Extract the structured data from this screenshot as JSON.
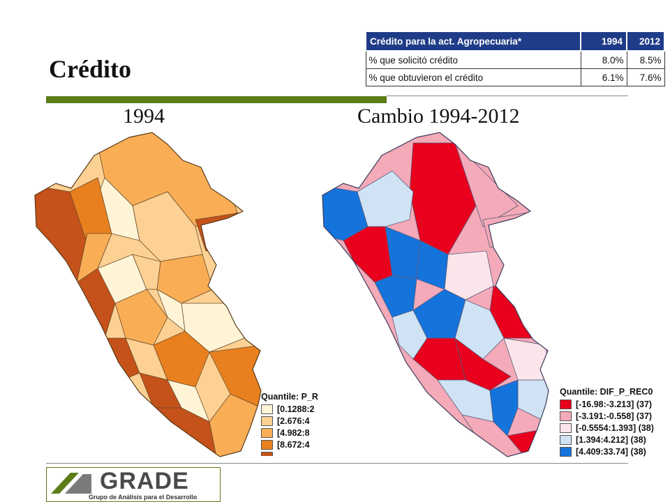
{
  "header": {
    "title": "Crédito"
  },
  "credit_table": {
    "columns": [
      "Crédito para la act. Agropecuaria*",
      "1994",
      "2012"
    ],
    "rows": [
      {
        "label": "% que solicitó crédito",
        "y1994": "8.0%",
        "y2012": "8.5%"
      },
      {
        "label": "% que obtuvieron el crédito",
        "y1994": "6.1%",
        "y2012": "7.6%"
      }
    ]
  },
  "maps": [
    {
      "title": "1994",
      "legend_title": "Quantile: P_R",
      "legend": [
        {
          "label": "[0.1288:2",
          "color": "#fff5d6"
        },
        {
          "label": "[2.676:4",
          "color": "#fcd193"
        },
        {
          "label": "[4.982:8",
          "color": "#f9ae56"
        },
        {
          "label": "[8.672:4",
          "color": "#e8801f"
        },
        {
          "label": "",
          "color": "#c4521a"
        }
      ]
    },
    {
      "title": "Cambio 1994-2012",
      "legend_title": "Quantile: DIF_P_REC0",
      "legend": [
        {
          "label": "[-16.98:-3.213] (37)",
          "color": "#e8001c"
        },
        {
          "label": "[-3.191:-0.558] (37)",
          "color": "#f4aab8"
        },
        {
          "label": "[-0.5554:1.393] (38)",
          "color": "#fbe5ea"
        },
        {
          "label": "[1.394:4.212] (38)",
          "color": "#cfe3f4"
        },
        {
          "label": "[4.409:33.74] (38)",
          "color": "#1573dc"
        }
      ]
    }
  ],
  "logo": {
    "name": "GRADE",
    "subtitle": "Grupo de Análisis para el Desarrollo"
  }
}
